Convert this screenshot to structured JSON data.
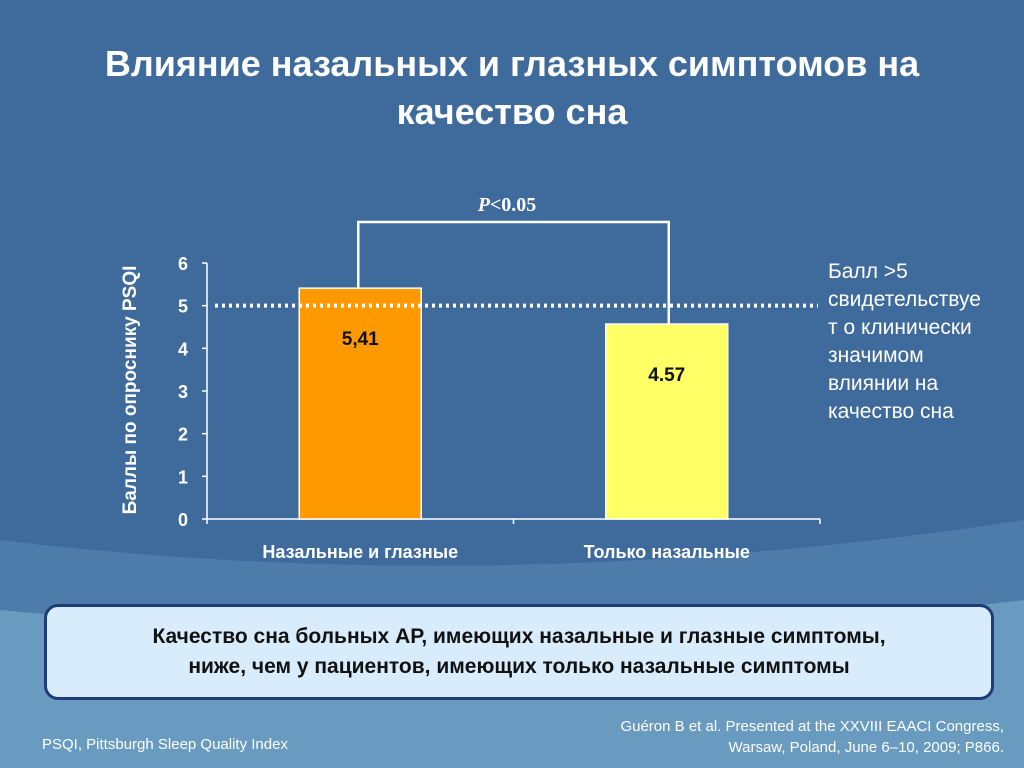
{
  "slide": {
    "title_line1": "Влияние назальных и глазных симптомов на",
    "title_line2": "качество сна"
  },
  "annotation": {
    "pvalue_italic": "P",
    "pvalue_rest": "<0.05",
    "threshold_note": [
      "Балл >5",
      "свидетельствуе",
      "т о клинически",
      "значимом",
      "влиянии на",
      "качество сна"
    ]
  },
  "callout": {
    "line1": "Качество сна больных АР, имеющих назальные и глазные симптомы,",
    "line2": "ниже, чем у пациентов, имеющих только назальные симптомы"
  },
  "footnotes": {
    "abbreviation": "PSQI, Pittsburgh Sleep Quality Index",
    "reference_line1": "Guéron B et al. Presented at the XXVIII EAACI Congress,",
    "reference_line2": "Warsaw, Poland, June 6–10, 2009; P866."
  },
  "colors": {
    "background": "#3f6a9c",
    "bar_nasal_ocular": "#ff9900",
    "bar_nasal_only": "#ffff66",
    "callout_fill": "#d9ecfc",
    "callout_border": "#1d3c78"
  },
  "chart_data": {
    "type": "bar",
    "categories": [
      "Назальные и глазные",
      "Только назальные"
    ],
    "values": [
      5.41,
      4.57
    ],
    "value_labels": [
      "5,41",
      "4.57"
    ],
    "ylabel": "Баллы по опроснику PSQI",
    "ylim": [
      0,
      6
    ],
    "yticks": [
      "0",
      "1",
      "2",
      "3",
      "4",
      "5",
      "6"
    ],
    "threshold": 5,
    "grid": false
  }
}
